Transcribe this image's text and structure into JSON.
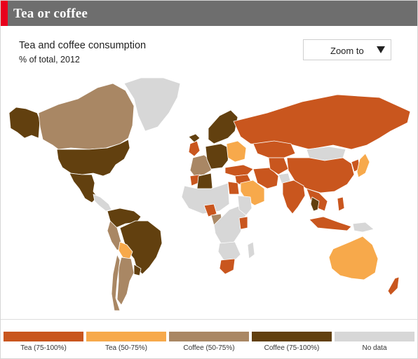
{
  "header": {
    "title": "Tea or coffee"
  },
  "map": {
    "title": "Tea and coffee consumption",
    "subtitle": "% of total, 2012"
  },
  "zoom": {
    "label": "Zoom to"
  },
  "colors": {
    "tea_75_100": "#c9561e",
    "tea_50_75": "#f7a94b",
    "coffee_50_75": "#a98764",
    "coffee_75_100": "#62400f",
    "no_data": "#d7d7d7",
    "header_bg": "#6e6e6e",
    "accent": "#e8001c"
  },
  "legend": [
    {
      "key": "tea_75_100",
      "label": "Tea (75-100%)"
    },
    {
      "key": "tea_50_75",
      "label": "Tea (50-75%)"
    },
    {
      "key": "coffee_50_75",
      "label": "Coffee (50-75%)"
    },
    {
      "key": "coffee_75_100",
      "label": "Coffee (75-100%)"
    },
    {
      "key": "no_data",
      "label": "No data"
    }
  ],
  "regions": [
    {
      "name": "alaska",
      "category": "coffee_75_100"
    },
    {
      "name": "canada",
      "category": "coffee_50_75"
    },
    {
      "name": "greenland",
      "category": "no_data"
    },
    {
      "name": "usa",
      "category": "coffee_75_100"
    },
    {
      "name": "mexico",
      "category": "coffee_75_100"
    },
    {
      "name": "central-america",
      "category": "no_data"
    },
    {
      "name": "colombia-venezuela",
      "category": "coffee_75_100"
    },
    {
      "name": "peru",
      "category": "coffee_50_75"
    },
    {
      "name": "brazil",
      "category": "coffee_75_100"
    },
    {
      "name": "bolivia",
      "category": "tea_50_75"
    },
    {
      "name": "argentina",
      "category": "coffee_50_75"
    },
    {
      "name": "chile",
      "category": "coffee_50_75"
    },
    {
      "name": "uruguay",
      "category": "coffee_75_100"
    },
    {
      "name": "iceland",
      "category": "coffee_75_100"
    },
    {
      "name": "uk-ireland",
      "category": "tea_75_100"
    },
    {
      "name": "scandinavia",
      "category": "coffee_75_100"
    },
    {
      "name": "france-iberia",
      "category": "coffee_50_75"
    },
    {
      "name": "central-europe",
      "category": "coffee_75_100"
    },
    {
      "name": "eastern-europe",
      "category": "tea_50_75"
    },
    {
      "name": "turkey",
      "category": "tea_75_100"
    },
    {
      "name": "russia",
      "category": "tea_75_100"
    },
    {
      "name": "kazakhstan",
      "category": "tea_75_100"
    },
    {
      "name": "mongolia",
      "category": "no_data"
    },
    {
      "name": "china",
      "category": "tea_75_100"
    },
    {
      "name": "korea",
      "category": "tea_75_100"
    },
    {
      "name": "japan",
      "category": "tea_50_75"
    },
    {
      "name": "middle-east",
      "category": "tea_75_100"
    },
    {
      "name": "saudi-arabia",
      "category": "tea_50_75"
    },
    {
      "name": "iran",
      "category": "tea_75_100"
    },
    {
      "name": "central-asia",
      "category": "tea_75_100"
    },
    {
      "name": "afghanistan",
      "category": "no_data"
    },
    {
      "name": "india",
      "category": "tea_75_100"
    },
    {
      "name": "southeast-asia",
      "category": "tea_75_100"
    },
    {
      "name": "thailand",
      "category": "coffee_75_100"
    },
    {
      "name": "indonesia",
      "category": "tea_75_100"
    },
    {
      "name": "philippines",
      "category": "tea_75_100"
    },
    {
      "name": "papua-new-guinea",
      "category": "no_data"
    },
    {
      "name": "australia",
      "category": "tea_50_75"
    },
    {
      "name": "new-zealand",
      "category": "tea_75_100"
    },
    {
      "name": "morocco",
      "category": "tea_75_100"
    },
    {
      "name": "algeria",
      "category": "coffee_75_100"
    },
    {
      "name": "egypt",
      "category": "tea_75_100"
    },
    {
      "name": "north-africa",
      "category": "no_data"
    },
    {
      "name": "nigeria",
      "category": "tea_75_100"
    },
    {
      "name": "cameroon",
      "category": "coffee_50_75"
    },
    {
      "name": "central-africa",
      "category": "no_data"
    },
    {
      "name": "kenya",
      "category": "tea_75_100"
    },
    {
      "name": "east-africa",
      "category": "no_data"
    },
    {
      "name": "southern-africa",
      "category": "no_data"
    },
    {
      "name": "south-africa",
      "category": "tea_75_100"
    },
    {
      "name": "madagascar",
      "category": "no_data"
    }
  ]
}
